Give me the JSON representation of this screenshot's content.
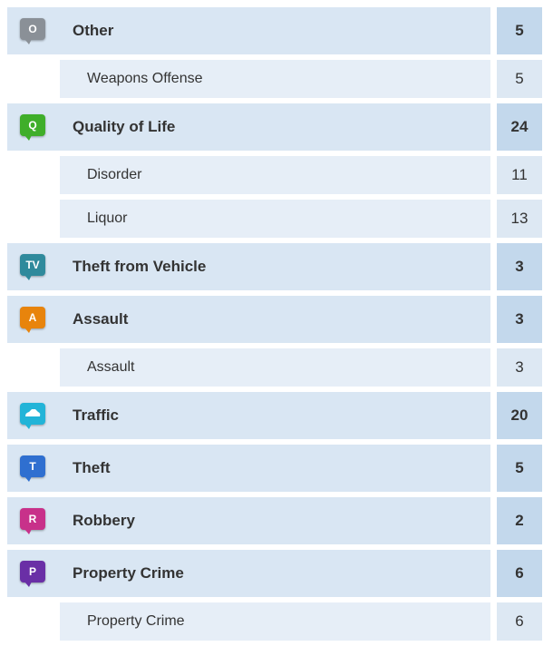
{
  "categories": [
    {
      "name": "Other",
      "icon": "O",
      "icon_color": "#8a9097",
      "count": "5",
      "items": [
        {
          "name": "Weapons Offense",
          "count": "5"
        }
      ]
    },
    {
      "name": "Quality of Life",
      "icon": "Q",
      "icon_color": "#3fae2a",
      "count": "24",
      "items": [
        {
          "name": "Disorder",
          "count": "11"
        },
        {
          "name": "Liquor",
          "count": "13"
        }
      ]
    },
    {
      "name": "Theft from Vehicle",
      "icon": "TV",
      "icon_color": "#2f8a9c",
      "count": "3",
      "items": []
    },
    {
      "name": "Assault",
      "icon": "A",
      "icon_color": "#e8840c",
      "count": "3",
      "items": [
        {
          "name": "Assault",
          "count": "3"
        }
      ]
    },
    {
      "name": "Traffic",
      "icon_color": "#22b4d8",
      "count": "20",
      "items": []
    },
    {
      "name": "Theft",
      "icon": "T",
      "icon_color": "#2f6fd0",
      "count": "5",
      "items": []
    },
    {
      "name": "Robbery",
      "icon": "R",
      "icon_color": "#c8318a",
      "count": "2",
      "items": []
    },
    {
      "name": "Property Crime",
      "icon": "P",
      "icon_color": "#6a2fa6",
      "count": "6",
      "items": [
        {
          "name": "Property Crime",
          "count": "6"
        }
      ]
    }
  ]
}
